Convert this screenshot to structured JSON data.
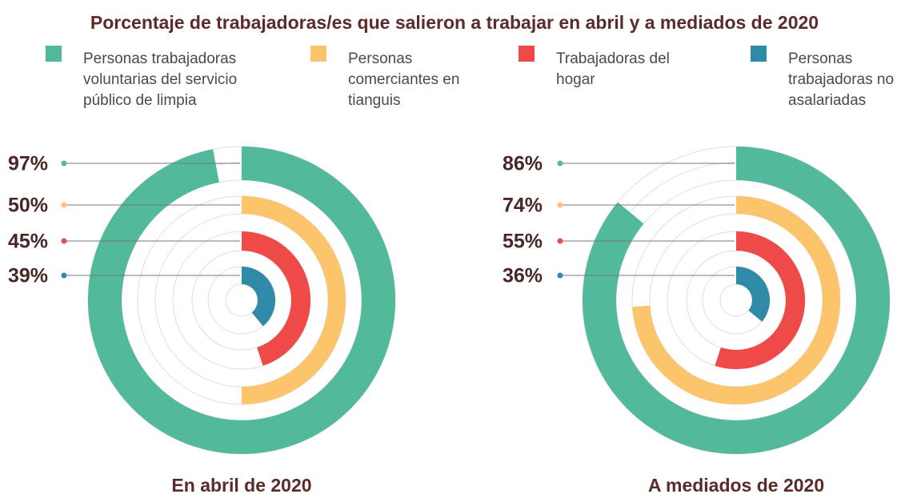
{
  "title": "Porcentaje de trabajadoras/es que salieron a trabajar en abril y a mediados de 2020",
  "legend": {
    "items": [
      {
        "name": "Personas trabajadoras voluntarias del servicio público de limpia",
        "color": "#52b99a"
      },
      {
        "name": "Personas comerciantes en tianguis",
        "color": "#fcc46b"
      },
      {
        "name": "Trabajadoras del hogar",
        "color": "#ee4a48"
      },
      {
        "name": "Personas trabajadoras no asalariadas",
        "color": "#2f8aa8"
      }
    ]
  },
  "chart_data": [
    {
      "type": "radial_bar",
      "title": "En abril de 2020",
      "vlim": [
        0,
        100
      ],
      "values": [
        97,
        50,
        45,
        39
      ],
      "value_labels": [
        "97%",
        "50%",
        "45%",
        "39%"
      ]
    },
    {
      "type": "radial_bar",
      "title": "A mediados de 2020",
      "vlim": [
        0,
        100
      ],
      "values": [
        86,
        74,
        55,
        36
      ],
      "value_labels": [
        "86%",
        "74%",
        "55%",
        "36%"
      ]
    }
  ]
}
